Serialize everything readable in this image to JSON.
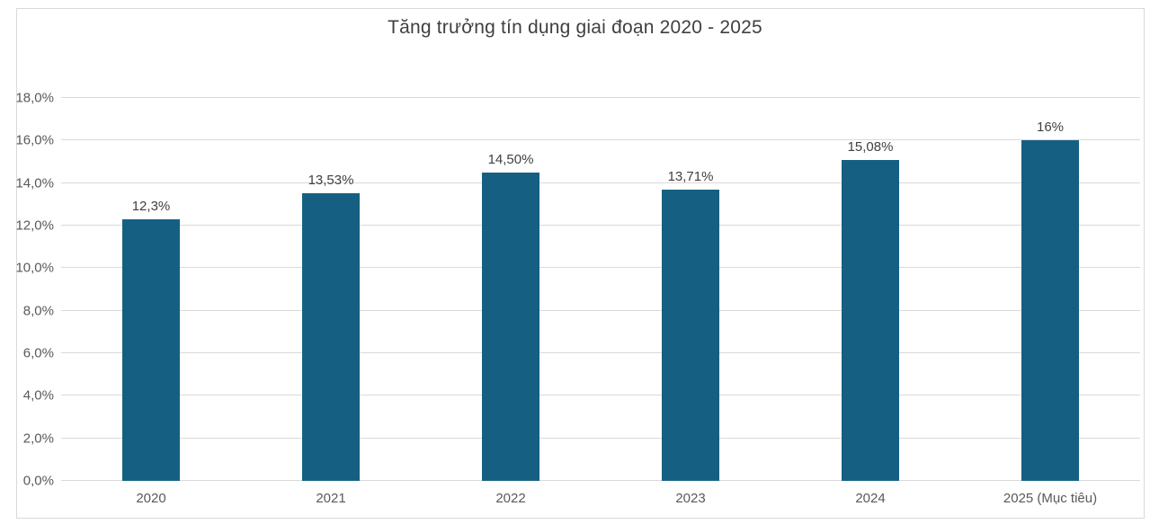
{
  "chart_data": {
    "type": "bar",
    "title": "Tăng trưởng tín dụng giai đoạn 2020 - 2025",
    "categories": [
      "2020",
      "2021",
      "2022",
      "2023",
      "2024",
      "2025 (Mục tiêu)"
    ],
    "values": [
      12.3,
      13.53,
      14.5,
      13.71,
      15.08,
      16
    ],
    "data_labels": [
      "12,3%",
      "13,53%",
      "14,50%",
      "13,71%",
      "15,08%",
      "16%"
    ],
    "ylabel": "",
    "xlabel": "",
    "ylim": [
      0,
      18
    ],
    "y_tick_step": 2,
    "y_tick_labels": [
      "0,0%",
      "2,0%",
      "4,0%",
      "6,0%",
      "8,0%",
      "10,0%",
      "12,0%",
      "14,0%",
      "16,0%",
      "18,0%"
    ],
    "grid": true,
    "legend": "none",
    "colors": {
      "bar": "#156082",
      "gridline": "#D9D9D9",
      "axis_text": "#595959",
      "label_text": "#404040",
      "title_text": "#404040",
      "frame_border": "#D9D9D9"
    }
  }
}
